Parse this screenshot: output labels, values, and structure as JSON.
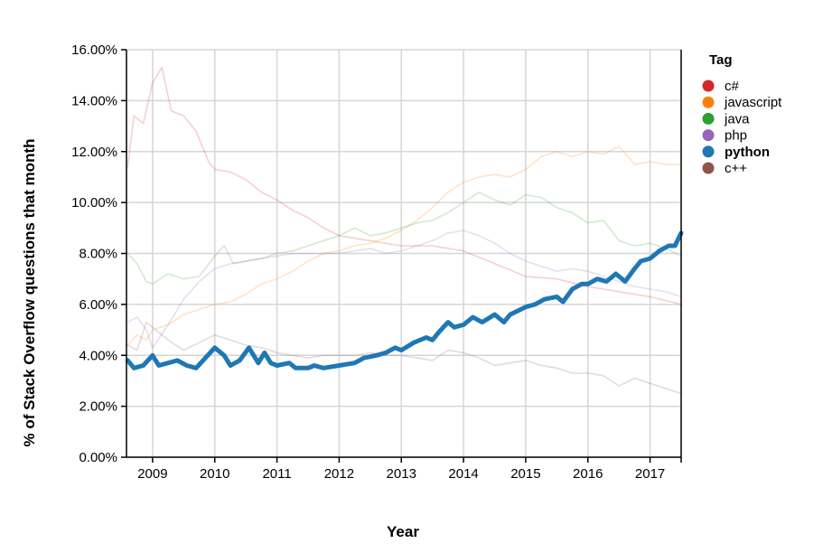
{
  "chart_data": {
    "type": "line",
    "xlabel": "Year",
    "ylabel": "% of Stack Overflow questions that month",
    "x_range": [
      2008.58,
      2017.5
    ],
    "ylim": [
      0,
      16
    ],
    "y_ticks": [
      "0.00%",
      "2.00%",
      "4.00%",
      "6.00%",
      "8.00%",
      "10.00%",
      "12.00%",
      "14.00%",
      "16.00%"
    ],
    "x_ticks": [
      "2009",
      "2010",
      "2011",
      "2012",
      "2013",
      "2014",
      "2015",
      "2016",
      "2017"
    ],
    "grid": true,
    "legend": {
      "title": "Tag",
      "placement": "right"
    },
    "highlighted": "python",
    "series": [
      {
        "name": "c#",
        "color": "#d62728",
        "points": [
          [
            2008.6,
            11.4
          ],
          [
            2008.7,
            13.4
          ],
          [
            2008.85,
            13.1
          ],
          [
            2009.0,
            14.7
          ],
          [
            2009.15,
            15.3
          ],
          [
            2009.3,
            13.6
          ],
          [
            2009.5,
            13.4
          ],
          [
            2009.7,
            12.8
          ],
          [
            2009.9,
            11.6
          ],
          [
            2010.0,
            11.3
          ],
          [
            2010.25,
            11.2
          ],
          [
            2010.5,
            10.9
          ],
          [
            2010.75,
            10.4
          ],
          [
            2011.0,
            10.1
          ],
          [
            2011.25,
            9.7
          ],
          [
            2011.5,
            9.4
          ],
          [
            2011.75,
            9.0
          ],
          [
            2012.0,
            8.7
          ],
          [
            2012.5,
            8.5
          ],
          [
            2013.0,
            8.3
          ],
          [
            2013.5,
            8.3
          ],
          [
            2014.0,
            8.1
          ],
          [
            2014.5,
            7.6
          ],
          [
            2015.0,
            7.1
          ],
          [
            2015.5,
            7.0
          ],
          [
            2016.0,
            6.7
          ],
          [
            2016.5,
            6.5
          ],
          [
            2017.0,
            6.3
          ],
          [
            2017.5,
            6.0
          ]
        ]
      },
      {
        "name": "javascript",
        "color": "#ff7f0e",
        "points": [
          [
            2008.6,
            4.4
          ],
          [
            2008.75,
            4.8
          ],
          [
            2008.9,
            4.6
          ],
          [
            2009.0,
            5.0
          ],
          [
            2009.25,
            5.2
          ],
          [
            2009.5,
            5.6
          ],
          [
            2009.75,
            5.8
          ],
          [
            2010.0,
            6.0
          ],
          [
            2010.25,
            6.1
          ],
          [
            2010.5,
            6.4
          ],
          [
            2010.75,
            6.8
          ],
          [
            2011.0,
            7.0
          ],
          [
            2011.25,
            7.3
          ],
          [
            2011.5,
            7.7
          ],
          [
            2011.75,
            8.0
          ],
          [
            2012.0,
            8.1
          ],
          [
            2012.25,
            8.3
          ],
          [
            2012.5,
            8.4
          ],
          [
            2012.75,
            8.6
          ],
          [
            2013.0,
            8.9
          ],
          [
            2013.25,
            9.3
          ],
          [
            2013.5,
            9.8
          ],
          [
            2013.75,
            10.4
          ],
          [
            2014.0,
            10.8
          ],
          [
            2014.25,
            11.0
          ],
          [
            2014.5,
            11.1
          ],
          [
            2014.75,
            11.0
          ],
          [
            2015.0,
            11.3
          ],
          [
            2015.25,
            11.8
          ],
          [
            2015.5,
            12.0
          ],
          [
            2015.75,
            11.8
          ],
          [
            2016.0,
            12.0
          ],
          [
            2016.25,
            11.9
          ],
          [
            2016.5,
            12.2
          ],
          [
            2016.75,
            11.5
          ],
          [
            2017.0,
            11.6
          ],
          [
            2017.25,
            11.5
          ],
          [
            2017.5,
            11.5
          ]
        ]
      },
      {
        "name": "java",
        "color": "#2ca02c",
        "points": [
          [
            2008.6,
            8.0
          ],
          [
            2008.75,
            7.6
          ],
          [
            2008.9,
            6.9
          ],
          [
            2009.0,
            6.8
          ],
          [
            2009.25,
            7.2
          ],
          [
            2009.5,
            7.0
          ],
          [
            2009.75,
            7.1
          ],
          [
            2010.0,
            7.9
          ],
          [
            2010.15,
            8.3
          ],
          [
            2010.3,
            7.6
          ],
          [
            2010.5,
            7.7
          ],
          [
            2010.75,
            7.8
          ],
          [
            2011.0,
            8.0
          ],
          [
            2011.25,
            8.1
          ],
          [
            2011.5,
            8.3
          ],
          [
            2011.75,
            8.5
          ],
          [
            2012.0,
            8.7
          ],
          [
            2012.25,
            9.0
          ],
          [
            2012.5,
            8.7
          ],
          [
            2012.75,
            8.8
          ],
          [
            2013.0,
            9.0
          ],
          [
            2013.25,
            9.2
          ],
          [
            2013.5,
            9.3
          ],
          [
            2013.75,
            9.6
          ],
          [
            2014.0,
            10.0
          ],
          [
            2014.25,
            10.4
          ],
          [
            2014.5,
            10.1
          ],
          [
            2014.75,
            9.9
          ],
          [
            2015.0,
            10.3
          ],
          [
            2015.25,
            10.2
          ],
          [
            2015.5,
            9.8
          ],
          [
            2015.75,
            9.6
          ],
          [
            2016.0,
            9.2
          ],
          [
            2016.25,
            9.3
          ],
          [
            2016.5,
            8.5
          ],
          [
            2016.75,
            8.3
          ],
          [
            2017.0,
            8.4
          ],
          [
            2017.25,
            8.2
          ],
          [
            2017.5,
            7.9
          ]
        ]
      },
      {
        "name": "php",
        "color": "#9467bd",
        "points": [
          [
            2008.6,
            5.3
          ],
          [
            2008.75,
            5.5
          ],
          [
            2008.9,
            5.0
          ],
          [
            2009.0,
            4.3
          ],
          [
            2009.25,
            5.2
          ],
          [
            2009.5,
            6.2
          ],
          [
            2009.75,
            6.9
          ],
          [
            2010.0,
            7.4
          ],
          [
            2010.25,
            7.6
          ],
          [
            2010.5,
            7.7
          ],
          [
            2010.75,
            7.8
          ],
          [
            2011.0,
            7.9
          ],
          [
            2011.25,
            8.0
          ],
          [
            2011.5,
            8.0
          ],
          [
            2011.75,
            8.0
          ],
          [
            2012.0,
            8.0
          ],
          [
            2012.25,
            8.1
          ],
          [
            2012.5,
            8.2
          ],
          [
            2012.75,
            8.0
          ],
          [
            2013.0,
            8.1
          ],
          [
            2013.25,
            8.3
          ],
          [
            2013.5,
            8.5
          ],
          [
            2013.75,
            8.8
          ],
          [
            2014.0,
            8.9
          ],
          [
            2014.25,
            8.7
          ],
          [
            2014.5,
            8.4
          ],
          [
            2014.75,
            8.0
          ],
          [
            2015.0,
            7.7
          ],
          [
            2015.25,
            7.5
          ],
          [
            2015.5,
            7.3
          ],
          [
            2015.75,
            7.4
          ],
          [
            2016.0,
            7.3
          ],
          [
            2016.25,
            7.1
          ],
          [
            2016.5,
            6.9
          ],
          [
            2016.75,
            6.7
          ],
          [
            2017.0,
            6.6
          ],
          [
            2017.25,
            6.5
          ],
          [
            2017.5,
            6.3
          ]
        ]
      },
      {
        "name": "python",
        "color": "#1f77b4",
        "points": [
          [
            2008.6,
            3.8
          ],
          [
            2008.7,
            3.5
          ],
          [
            2008.85,
            3.6
          ],
          [
            2009.0,
            4.0
          ],
          [
            2009.1,
            3.6
          ],
          [
            2009.25,
            3.7
          ],
          [
            2009.4,
            3.8
          ],
          [
            2009.55,
            3.6
          ],
          [
            2009.7,
            3.5
          ],
          [
            2009.85,
            3.9
          ],
          [
            2010.0,
            4.3
          ],
          [
            2010.15,
            4.0
          ],
          [
            2010.25,
            3.6
          ],
          [
            2010.4,
            3.8
          ],
          [
            2010.55,
            4.3
          ],
          [
            2010.7,
            3.7
          ],
          [
            2010.8,
            4.1
          ],
          [
            2010.9,
            3.7
          ],
          [
            2011.0,
            3.6
          ],
          [
            2011.2,
            3.7
          ],
          [
            2011.3,
            3.5
          ],
          [
            2011.5,
            3.5
          ],
          [
            2011.6,
            3.6
          ],
          [
            2011.75,
            3.5
          ],
          [
            2012.0,
            3.6
          ],
          [
            2012.25,
            3.7
          ],
          [
            2012.4,
            3.9
          ],
          [
            2012.6,
            4.0
          ],
          [
            2012.75,
            4.1
          ],
          [
            2012.9,
            4.3
          ],
          [
            2013.0,
            4.2
          ],
          [
            2013.2,
            4.5
          ],
          [
            2013.4,
            4.7
          ],
          [
            2013.5,
            4.6
          ],
          [
            2013.6,
            4.9
          ],
          [
            2013.75,
            5.3
          ],
          [
            2013.85,
            5.1
          ],
          [
            2014.0,
            5.2
          ],
          [
            2014.15,
            5.5
          ],
          [
            2014.3,
            5.3
          ],
          [
            2014.5,
            5.6
          ],
          [
            2014.65,
            5.3
          ],
          [
            2014.75,
            5.6
          ],
          [
            2015.0,
            5.9
          ],
          [
            2015.15,
            6.0
          ],
          [
            2015.3,
            6.2
          ],
          [
            2015.5,
            6.3
          ],
          [
            2015.6,
            6.1
          ],
          [
            2015.75,
            6.6
          ],
          [
            2015.9,
            6.8
          ],
          [
            2016.0,
            6.8
          ],
          [
            2016.15,
            7.0
          ],
          [
            2016.3,
            6.9
          ],
          [
            2016.45,
            7.2
          ],
          [
            2016.6,
            6.9
          ],
          [
            2016.75,
            7.4
          ],
          [
            2016.85,
            7.7
          ],
          [
            2017.0,
            7.8
          ],
          [
            2017.15,
            8.1
          ],
          [
            2017.3,
            8.3
          ],
          [
            2017.4,
            8.3
          ],
          [
            2017.5,
            8.8
          ]
        ]
      },
      {
        "name": "c++",
        "color": "#8c564b",
        "points": [
          [
            2008.6,
            4.4
          ],
          [
            2008.75,
            4.2
          ],
          [
            2008.9,
            5.3
          ],
          [
            2009.0,
            5.1
          ],
          [
            2009.25,
            4.6
          ],
          [
            2009.5,
            4.2
          ],
          [
            2009.75,
            4.5
          ],
          [
            2010.0,
            4.8
          ],
          [
            2010.25,
            4.6
          ],
          [
            2010.5,
            4.4
          ],
          [
            2010.75,
            4.3
          ],
          [
            2011.0,
            4.1
          ],
          [
            2011.25,
            4.0
          ],
          [
            2011.5,
            3.9
          ],
          [
            2011.75,
            4.0
          ],
          [
            2012.0,
            4.0
          ],
          [
            2012.25,
            4.0
          ],
          [
            2012.5,
            4.1
          ],
          [
            2012.75,
            4.0
          ],
          [
            2013.0,
            4.0
          ],
          [
            2013.25,
            3.9
          ],
          [
            2013.5,
            3.8
          ],
          [
            2013.75,
            4.2
          ],
          [
            2014.0,
            4.1
          ],
          [
            2014.25,
            3.9
          ],
          [
            2014.5,
            3.6
          ],
          [
            2014.75,
            3.7
          ],
          [
            2015.0,
            3.8
          ],
          [
            2015.25,
            3.6
          ],
          [
            2015.5,
            3.5
          ],
          [
            2015.75,
            3.3
          ],
          [
            2016.0,
            3.3
          ],
          [
            2016.25,
            3.2
          ],
          [
            2016.5,
            2.8
          ],
          [
            2016.75,
            3.1
          ],
          [
            2017.0,
            2.9
          ],
          [
            2017.25,
            2.7
          ],
          [
            2017.5,
            2.5
          ]
        ]
      }
    ]
  }
}
